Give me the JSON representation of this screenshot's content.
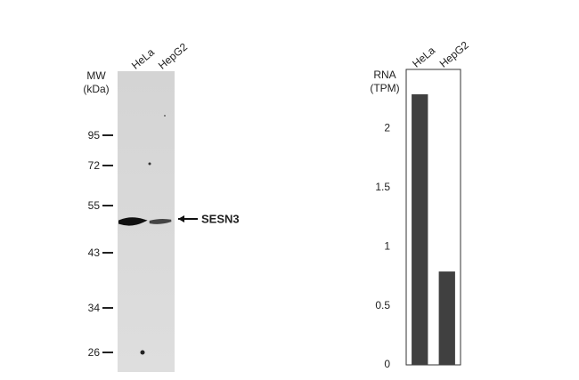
{
  "blot": {
    "lanes": [
      "HeLa",
      "HepG2"
    ],
    "mw_label": [
      "MW",
      "(kDa)"
    ],
    "markers": [
      95,
      72,
      55,
      43,
      34,
      26
    ],
    "target": "SESN3"
  },
  "chart_data": {
    "type": "bar",
    "ylabel": [
      "RNA",
      "(TPM)"
    ],
    "categories": [
      "HeLa",
      "HepG2"
    ],
    "values": [
      2.29,
      0.79
    ],
    "color": "#404040",
    "ylim": [
      0,
      2.5
    ],
    "yticks": [
      0,
      0.5,
      1,
      1.5,
      2
    ]
  }
}
